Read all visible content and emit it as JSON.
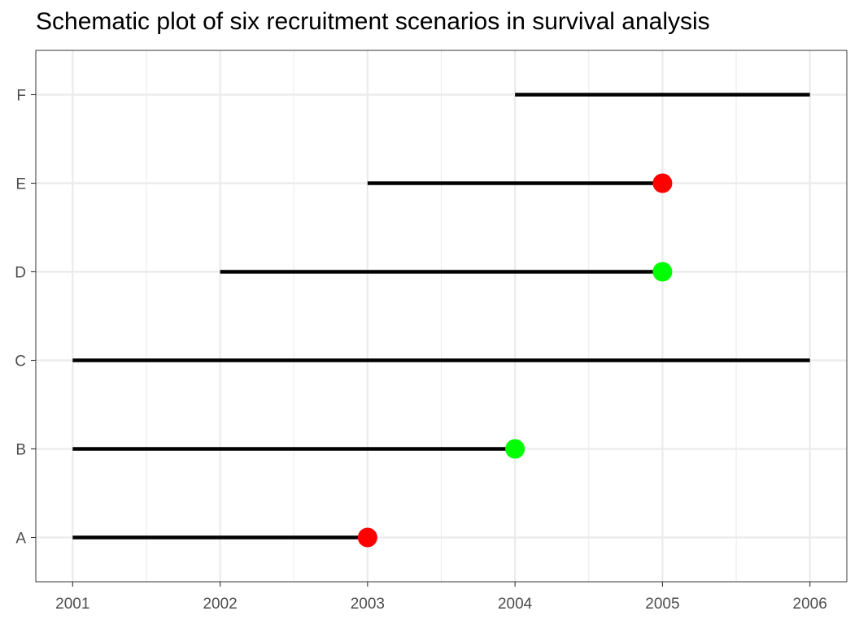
{
  "chart_data": {
    "type": "line",
    "title": "Schematic plot of six recruitment scenarios in survival analysis",
    "xlabel": "",
    "ylabel": "",
    "x_ticks": [
      2001,
      2002,
      2003,
      2004,
      2005,
      2006
    ],
    "y_categories": [
      "A",
      "B",
      "C",
      "D",
      "E",
      "F"
    ],
    "xlim": [
      2000.75,
      2006.25
    ],
    "grid": true,
    "segments": [
      {
        "id": "A",
        "start": 2001,
        "end": 2003,
        "event": "red"
      },
      {
        "id": "B",
        "start": 2001,
        "end": 2004,
        "event": "green"
      },
      {
        "id": "C",
        "start": 2001,
        "end": 2006,
        "event": null
      },
      {
        "id": "D",
        "start": 2002,
        "end": 2005,
        "event": "green"
      },
      {
        "id": "E",
        "start": 2003,
        "end": 2005,
        "event": "red"
      },
      {
        "id": "F",
        "start": 2004,
        "end": 2006,
        "event": null
      }
    ],
    "colors": {
      "segment": "#000000",
      "red": "#ff0000",
      "green": "#00ff00",
      "grid": "#ebebeb",
      "panel_border": "#333333",
      "tick_text": "#4d4d4d"
    }
  }
}
